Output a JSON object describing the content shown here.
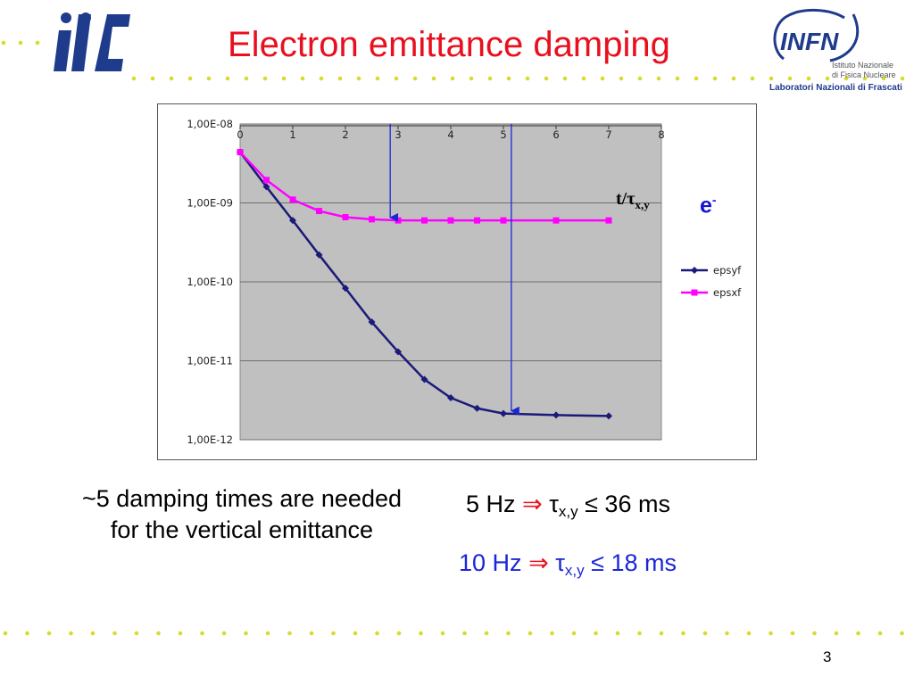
{
  "slide": {
    "title": "Electron emittance damping",
    "page_number": "3",
    "infn_logo": {
      "name": "INFN",
      "line1": "Istituto Nazionale",
      "line2": "di Fisica Nucleare",
      "line3": "Laboratori Nazionali di Frascati"
    },
    "ilc_logo": {
      "name": "ilc"
    },
    "accent_color": "#e8101e",
    "dot_color": "#d7dc28"
  },
  "annotations": {
    "axis_label": {
      "base": "t/",
      "tau": "τ",
      "sub": "x,y"
    },
    "particle": {
      "base": "e",
      "sup": "-"
    },
    "note": "~5 damping times are needed for the vertical emittance",
    "rate_5hz": {
      "freq": "5 Hz",
      "arrow": "⇒",
      "tau": "τ",
      "sub": "x,y",
      "rel": "≤ 36 ms"
    },
    "rate_10hz": {
      "freq": "10 Hz",
      "arrow": "⇒",
      "tau": "τ",
      "sub": "x,y",
      "rel": "≤ 18 ms"
    }
  },
  "chart_data": {
    "type": "line",
    "xlim": [
      0,
      8
    ],
    "x_ticks": [
      "0",
      "1",
      "2",
      "3",
      "4",
      "5",
      "6",
      "7",
      "8"
    ],
    "y_scale": "log",
    "ylim": [
      1e-12,
      1e-08
    ],
    "y_ticks": [
      {
        "value": 1e-08,
        "label": "1,00E-08"
      },
      {
        "value": 1e-09,
        "label": "1,00E-09"
      },
      {
        "value": 1e-10,
        "label": "1,00E-10"
      },
      {
        "value": 1e-11,
        "label": "1,00E-11"
      },
      {
        "value": 1e-12,
        "label": "1,00E-12"
      }
    ],
    "grid": "horizontal",
    "legend_position": "right",
    "series": [
      {
        "name": "epsyf",
        "color": "#1a1a7a",
        "marker": "diamond",
        "x": [
          0,
          0.5,
          1,
          1.5,
          2,
          2.5,
          3,
          3.5,
          4,
          4.5,
          5,
          6,
          7
        ],
        "y": [
          4.4e-09,
          1.6e-09,
          6e-10,
          2.2e-10,
          8.3e-11,
          3.1e-11,
          1.3e-11,
          5.8e-12,
          3.4e-12,
          2.5e-12,
          2.15e-12,
          2.05e-12,
          2e-12
        ]
      },
      {
        "name": "epsxf",
        "color": "#ff00ff",
        "marker": "square",
        "x": [
          0,
          0.5,
          1,
          1.5,
          2,
          2.5,
          3,
          3.5,
          4,
          4.5,
          5,
          6,
          7
        ],
        "y": [
          4.4e-09,
          1.95e-09,
          1.1e-09,
          7.9e-10,
          6.6e-10,
          6.2e-10,
          6e-10,
          6e-10,
          6e-10,
          6e-10,
          6e-10,
          6e-10,
          6e-10
        ]
      }
    ],
    "arrows": [
      {
        "x": 2.85,
        "y_from": 1e-08,
        "y_to": 6.2e-10
      },
      {
        "x": 5.15,
        "y_from": 1e-08,
        "y_to": 2.2e-12
      }
    ]
  }
}
